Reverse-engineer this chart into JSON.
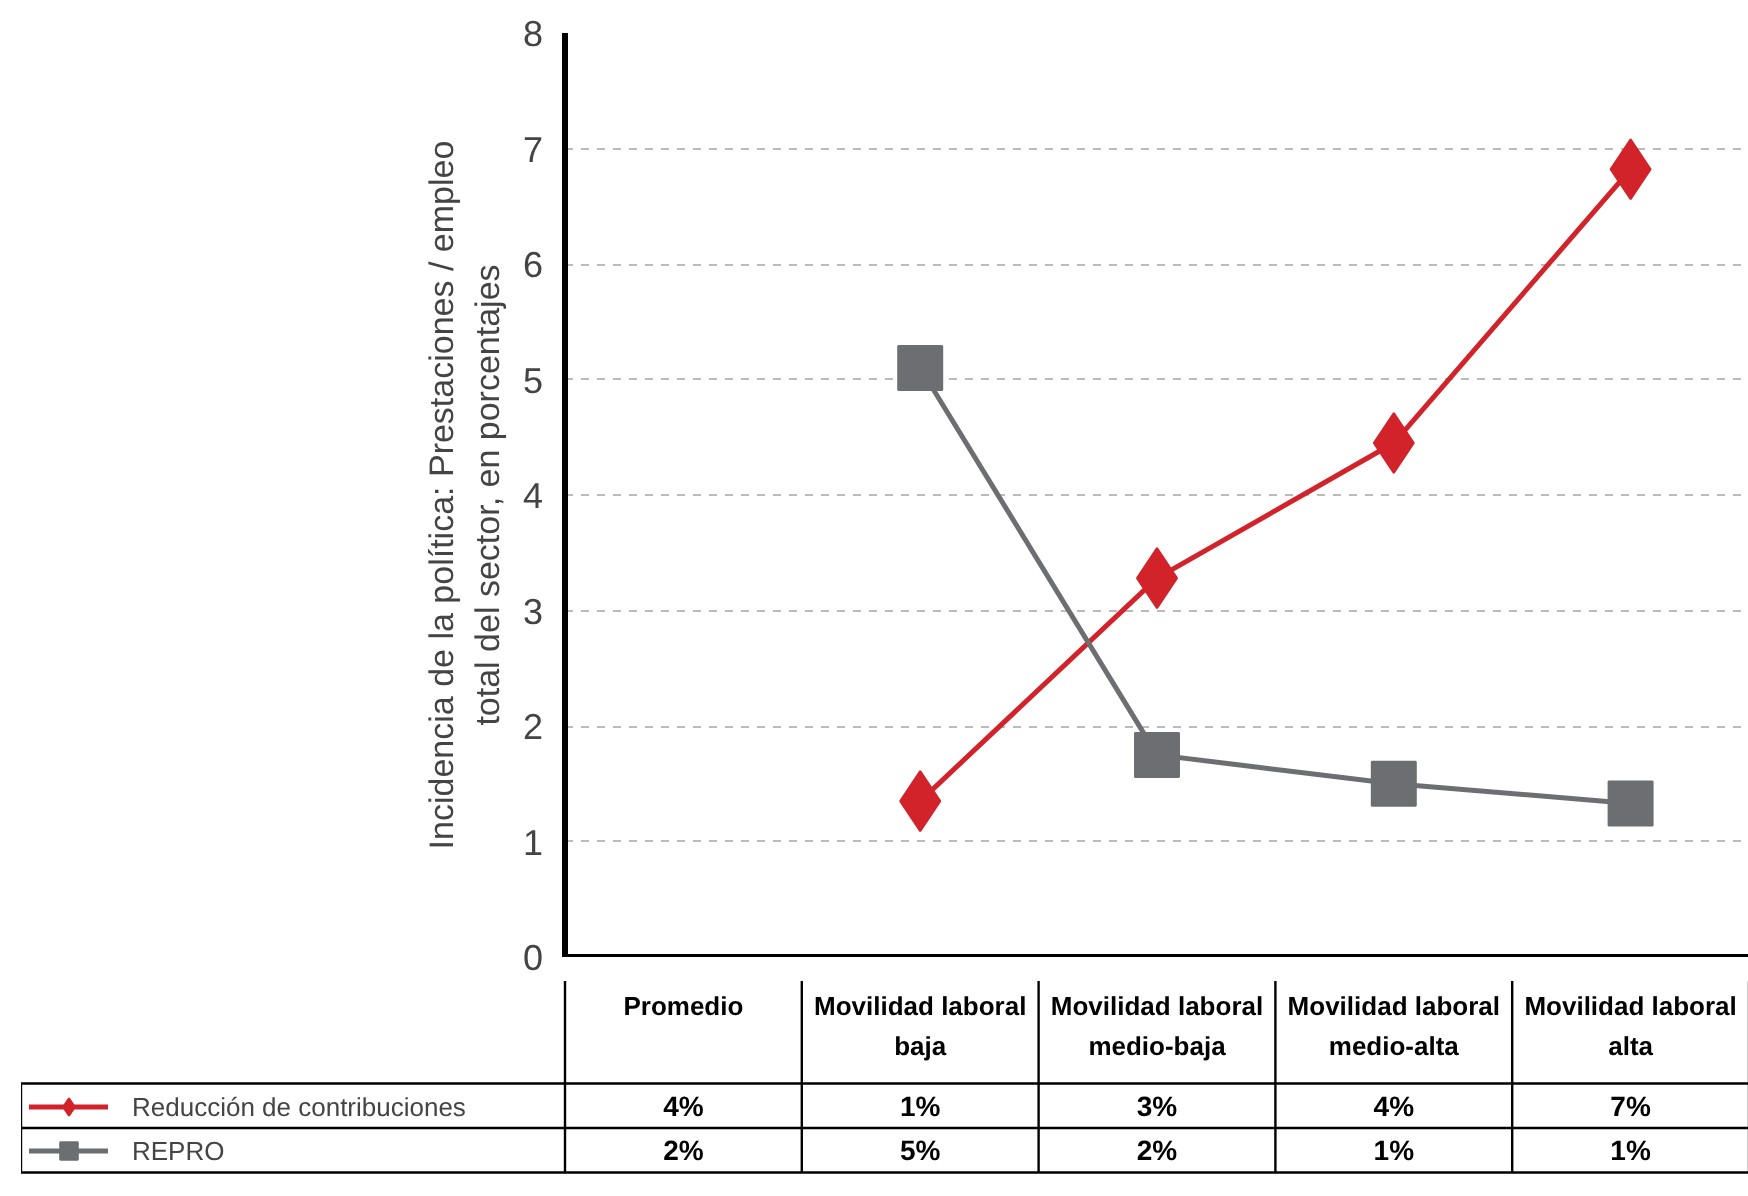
{
  "chart_data": {
    "type": "line",
    "ylabel": "Incidencia de la política: Prestaciones / empleo\ntotal del sector, en porcentajes",
    "categories": [
      "Promedio",
      "Movilidad laboral\nbaja",
      "Movilidad laboral\nmedio-baja",
      "Movilidad laboral\nmedio-alta",
      "Movilidad laboral\nalta"
    ],
    "series": [
      {
        "name": "Reducción de contribuciones",
        "color": "#d2232a",
        "marker": "diamond",
        "values": [
          null,
          1.35,
          3.28,
          4.45,
          6.82
        ],
        "value_labels": [
          "4%",
          "1%",
          "3%",
          "4%",
          "7%"
        ]
      },
      {
        "name": "REPRO",
        "color": "#6d6e71",
        "marker": "square",
        "values": [
          null,
          5.1,
          1.75,
          1.5,
          1.33
        ],
        "value_labels": [
          "2%",
          "5%",
          "2%",
          "1%",
          "1%"
        ]
      }
    ],
    "ylim": [
      0,
      8
    ],
    "yticks": [
      0,
      1,
      2,
      3,
      4,
      5,
      6,
      7,
      8
    ],
    "grid": "y",
    "legend": "bottom",
    "line_style": "solid"
  }
}
